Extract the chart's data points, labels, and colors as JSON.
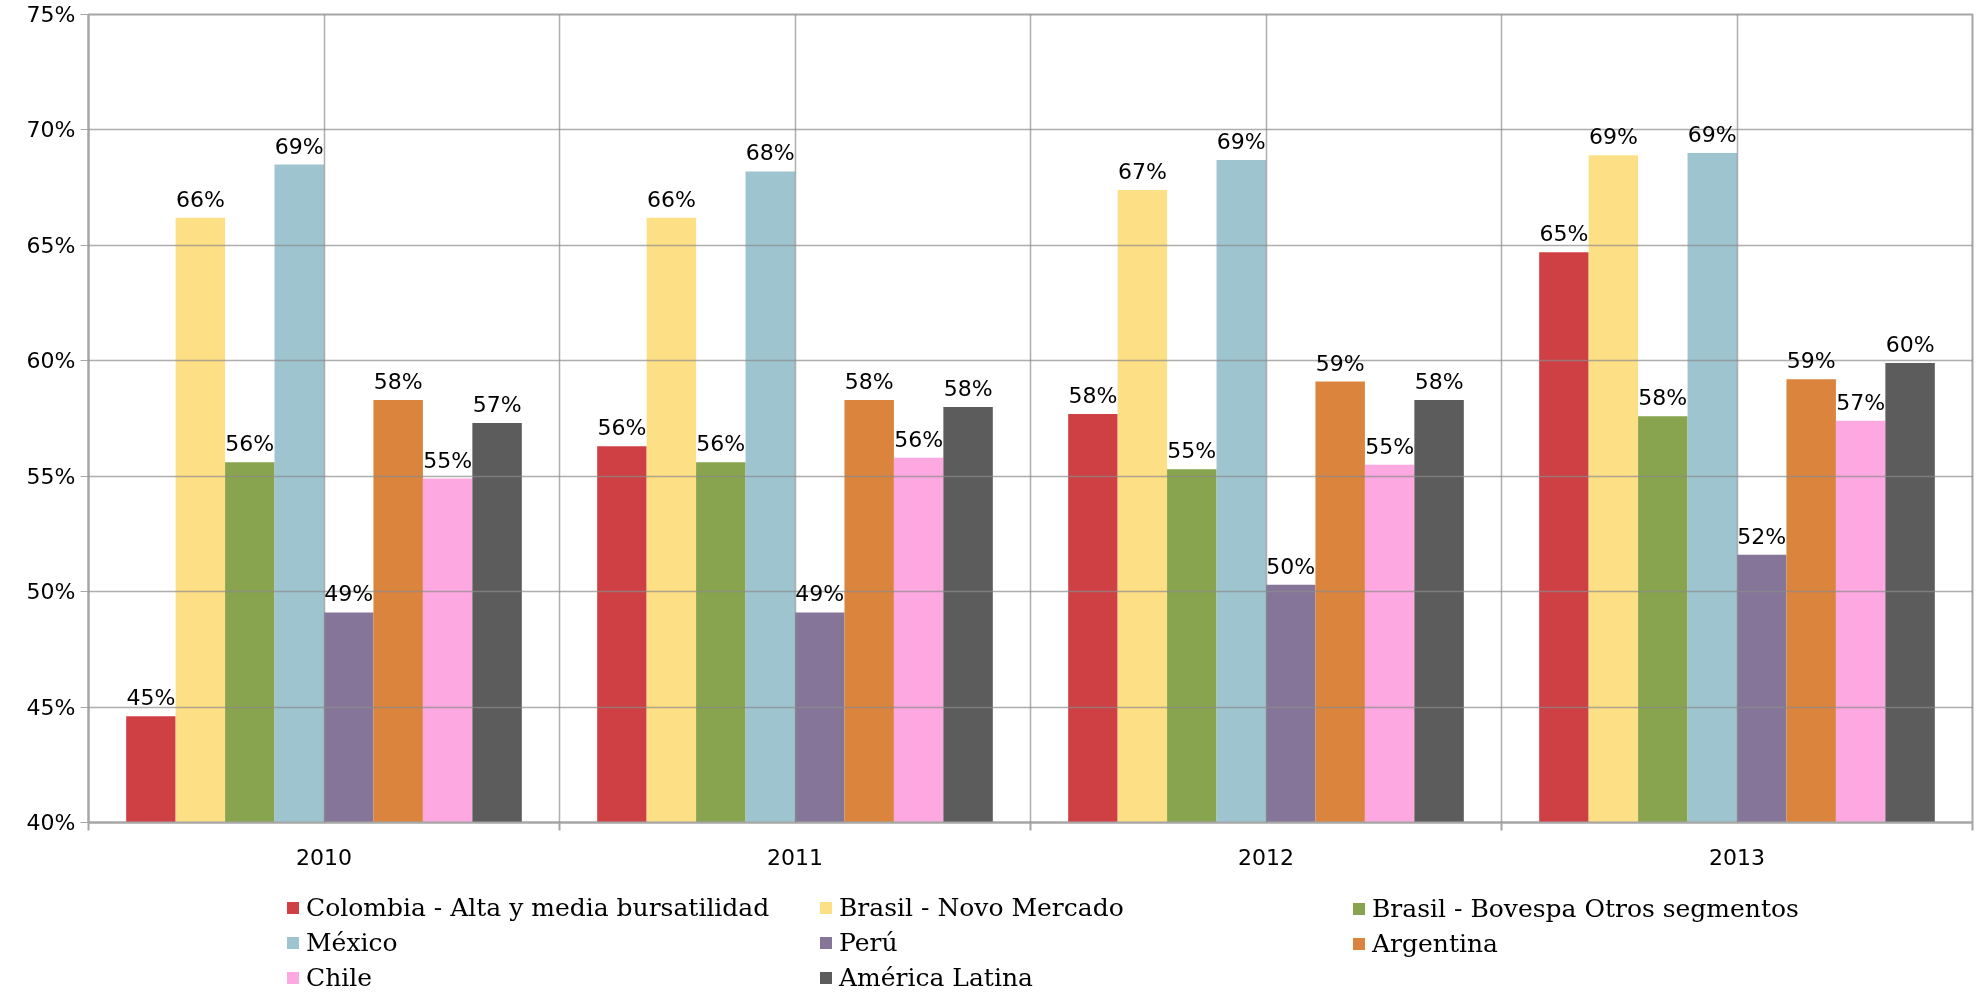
{
  "chart_data": {
    "type": "bar",
    "categories": [
      "2010",
      "2011",
      "2012",
      "2013"
    ],
    "series": [
      {
        "name": "Colombia - Alta y media bursatilidad",
        "color": "#ce4043",
        "values": [
          44.6,
          56.3,
          57.7,
          64.7
        ],
        "value_labels": [
          "45%",
          "56%",
          "58%",
          "65%"
        ]
      },
      {
        "name": "Brasil - Novo Mercado",
        "color": "#fddf85",
        "values": [
          66.2,
          66.2,
          67.4,
          68.9
        ],
        "value_labels": [
          "66%",
          "66%",
          "67%",
          "69%"
        ]
      },
      {
        "name": "Brasil - Bovespa Otros segmentos",
        "color": "#88a44e",
        "values": [
          55.6,
          55.6,
          55.3,
          57.6
        ],
        "value_labels": [
          "56%",
          "56%",
          "55%",
          "58%"
        ]
      },
      {
        "name": "México",
        "color": "#9ec4cf",
        "values": [
          68.5,
          68.2,
          68.7,
          69.0
        ],
        "value_labels": [
          "69%",
          "68%",
          "69%",
          "69%"
        ]
      },
      {
        "name": "Perú",
        "color": "#857699",
        "values": [
          49.1,
          49.1,
          50.3,
          51.6
        ],
        "value_labels": [
          "49%",
          "49%",
          "50%",
          "52%"
        ]
      },
      {
        "name": "Argentina",
        "color": "#db843d",
        "values": [
          58.3,
          58.3,
          59.1,
          59.2
        ],
        "value_labels": [
          "58%",
          "58%",
          "59%",
          "59%"
        ]
      },
      {
        "name": "Chile",
        "color": "#fda8e0",
        "values": [
          54.9,
          55.8,
          55.5,
          57.4
        ],
        "value_labels": [
          "55%",
          "56%",
          "55%",
          "57%"
        ]
      },
      {
        "name": "América Latina",
        "color": "#5c5c5c",
        "values": [
          57.3,
          58.0,
          58.3,
          59.9
        ],
        "value_labels": [
          "57%",
          "58%",
          "58%",
          "60%"
        ]
      }
    ],
    "ylim": [
      40,
      75
    ],
    "yticks": [
      {
        "value": 40,
        "label": "40%"
      },
      {
        "value": 45,
        "label": "45%"
      },
      {
        "value": 50,
        "label": "50%"
      },
      {
        "value": 55,
        "label": "55%"
      },
      {
        "value": 60,
        "label": "60%"
      },
      {
        "value": 65,
        "label": "65%"
      },
      {
        "value": 70,
        "label": "70%"
      },
      {
        "value": 75,
        "label": "75%"
      }
    ],
    "grid": true,
    "legend": "bottom"
  }
}
